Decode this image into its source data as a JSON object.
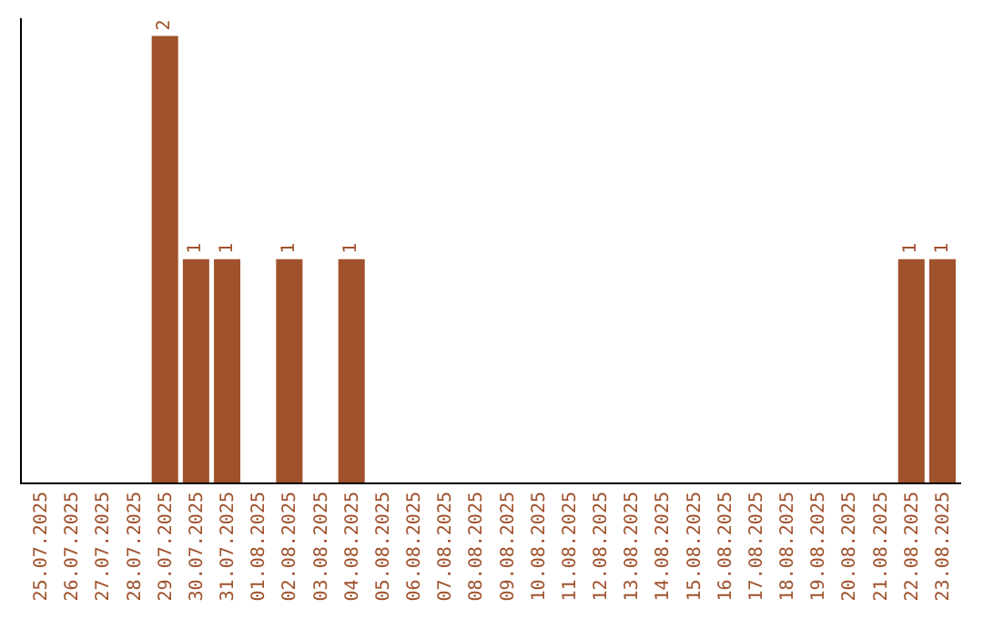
{
  "chart_data": {
    "type": "bar",
    "categories": [
      "25.07.2025",
      "26.07.2025",
      "27.07.2025",
      "28.07.2025",
      "29.07.2025",
      "30.07.2025",
      "31.07.2025",
      "01.08.2025",
      "02.08.2025",
      "03.08.2025",
      "04.08.2025",
      "05.08.2025",
      "06.08.2025",
      "07.08.2025",
      "08.08.2025",
      "09.08.2025",
      "10.08.2025",
      "11.08.2025",
      "12.08.2025",
      "13.08.2025",
      "14.08.2025",
      "15.08.2025",
      "16.08.2025",
      "17.08.2025",
      "18.08.2025",
      "19.08.2025",
      "20.08.2025",
      "21.08.2025",
      "22.08.2025",
      "23.08.2025"
    ],
    "values": [
      0,
      0,
      0,
      0,
      2,
      1,
      1,
      0,
      1,
      0,
      1,
      0,
      0,
      0,
      0,
      0,
      0,
      0,
      0,
      0,
      0,
      0,
      0,
      0,
      0,
      0,
      0,
      0,
      1,
      1
    ],
    "value_labels": [
      null,
      null,
      null,
      null,
      "2",
      "1",
      "1",
      null,
      "1",
      null,
      "1",
      null,
      null,
      null,
      null,
      null,
      null,
      null,
      null,
      null,
      null,
      null,
      null,
      null,
      null,
      null,
      null,
      null,
      "1",
      "1"
    ],
    "color": "#a0522d",
    "ylim": [
      0,
      2.08
    ],
    "tick_labels": "x",
    "legend": false
  }
}
